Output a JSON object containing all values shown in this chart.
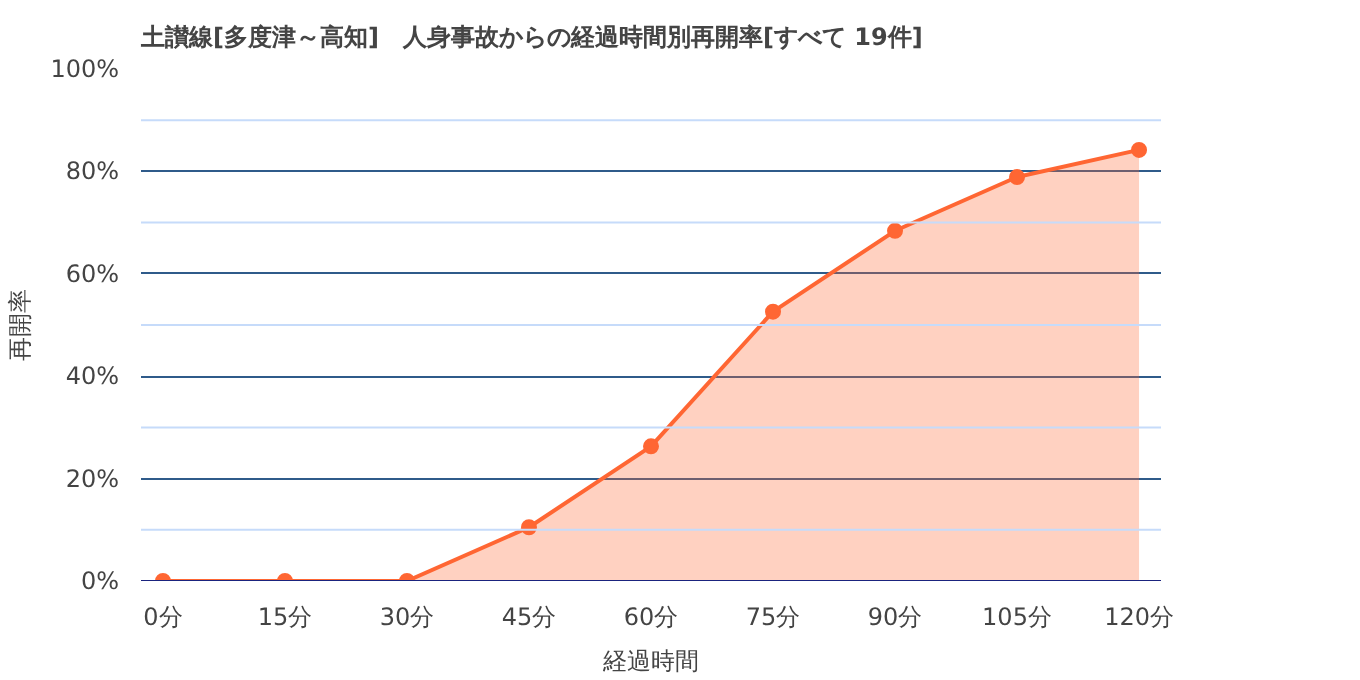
{
  "chart_data": {
    "type": "area",
    "title": "土讃線[多度津～高知]　人身事故からの経過時間別再開率[すべて 19件]",
    "xlabel": "経過時間",
    "ylabel": "再開率",
    "categories": [
      "0分",
      "15分",
      "30分",
      "45分",
      "60分",
      "75分",
      "90分",
      "105分",
      "120分"
    ],
    "series": [
      {
        "color": "#ff6633",
        "values": [
          0,
          0,
          0,
          10.5,
          26.3,
          52.6,
          68.4,
          78.9,
          84.2
        ]
      }
    ],
    "ylim": [
      0,
      100
    ],
    "yticks": [
      {
        "value": 0,
        "label": "0%"
      },
      {
        "value": 10,
        "label": null
      },
      {
        "value": 20,
        "label": "20%"
      },
      {
        "value": 30,
        "label": null
      },
      {
        "value": 40,
        "label": "40%"
      },
      {
        "value": 50,
        "label": null
      },
      {
        "value": 60,
        "label": "60%"
      },
      {
        "value": 70,
        "label": null
      },
      {
        "value": 80,
        "label": "80%"
      },
      {
        "value": 90,
        "label": null
      },
      {
        "value": 100,
        "label": "100%"
      }
    ],
    "grid": "y",
    "marker": "circle",
    "line_style": "solid"
  }
}
